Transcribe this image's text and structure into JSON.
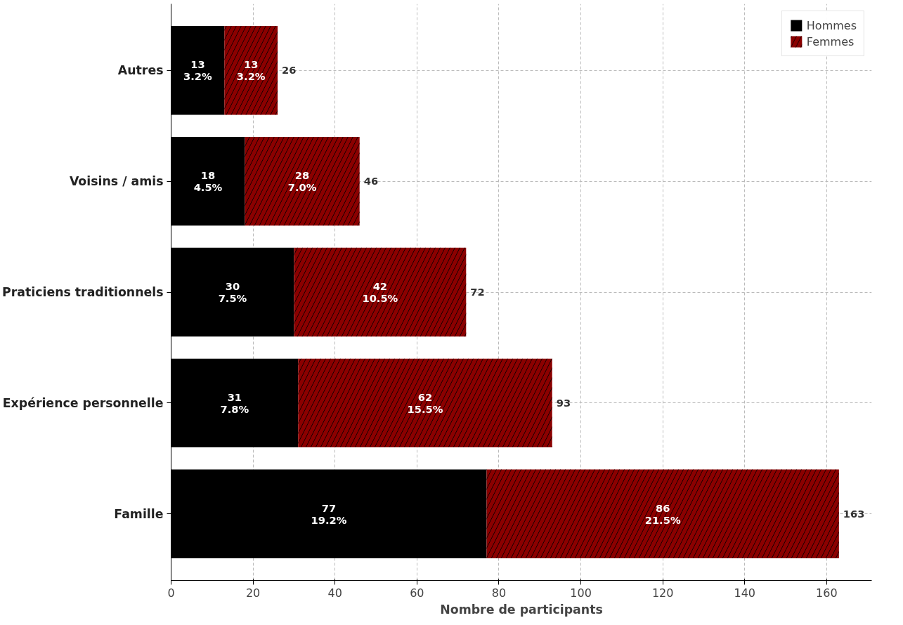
{
  "chart_data": {
    "type": "bar",
    "orientation": "horizontal",
    "stacked": true,
    "xlabel": "Nombre de participants",
    "categories": [
      "Autres",
      "Voisins / amis",
      "Praticiens traditionnels",
      "Expérience personnelle",
      "Famille"
    ],
    "series": [
      {
        "name": "Hommes",
        "color": "#000000",
        "values": [
          13,
          18,
          30,
          31,
          77
        ],
        "value_labels": [
          "13\n3.2%",
          "18\n4.5%",
          "30\n7.5%",
          "31\n7.8%",
          "77\n19.2%"
        ]
      },
      {
        "name": "Femmes",
        "color": "#8b0000",
        "values": [
          13,
          28,
          42,
          62,
          86
        ],
        "value_labels": [
          "13\n3.2%",
          "28\n7.0%",
          "42\n10.5%",
          "62\n15.5%",
          "86\n21.5%"
        ]
      }
    ],
    "totals": [
      "26",
      "46",
      "72",
      "93",
      "163"
    ],
    "xlim": [
      0,
      171
    ],
    "xticks": [
      0,
      20,
      40,
      60,
      80,
      100,
      120,
      140,
      160
    ],
    "grid": true,
    "legend": "top right"
  }
}
